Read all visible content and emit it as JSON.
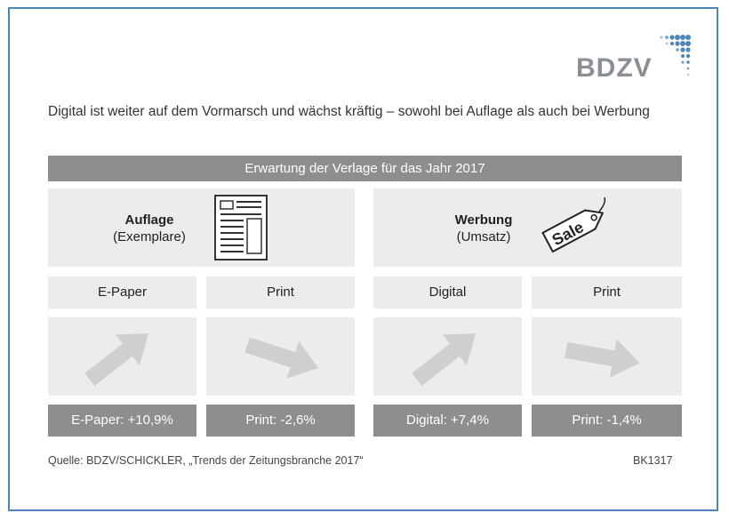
{
  "logo": {
    "text": "BDZV"
  },
  "headline": "Digital ist weiter auf dem Vormarsch und wächst kräftig – sowohl bei Auflage als auch bei Werbung",
  "banner": "Erwartung der Verlage für das Jahr 2017",
  "categories": [
    {
      "title": "Auflage",
      "subtitle": "(Exemplare)",
      "icon": "newspaper-icon"
    },
    {
      "title": "Werbung",
      "subtitle": "(Umsatz)",
      "icon": "sale-tag-icon",
      "tag_text": "Sale"
    }
  ],
  "columns": [
    {
      "label": "E-Paper",
      "trend": "up",
      "result": "E-Paper: +10,9%",
      "change_percent": 10.9
    },
    {
      "label": "Print",
      "trend": "down",
      "result": "Print: -2,6%",
      "change_percent": -2.6
    },
    {
      "label": "Digital",
      "trend": "up",
      "result": "Digital: +7,4%",
      "change_percent": 7.4
    },
    {
      "label": "Print",
      "trend": "down",
      "result": "Print: -1,4%",
      "change_percent": -1.4
    }
  ],
  "footer": {
    "source": "Quelle: BDZV/SCHICKLER, „Trends der Zeitungsbranche 2017“",
    "code": "BK1317"
  },
  "colors": {
    "frame": "#4f86b9",
    "banner": "#8e8e8e",
    "panel": "#ececec",
    "arrow": "#cfcfcf",
    "logo_dots": "#4f86b9"
  }
}
